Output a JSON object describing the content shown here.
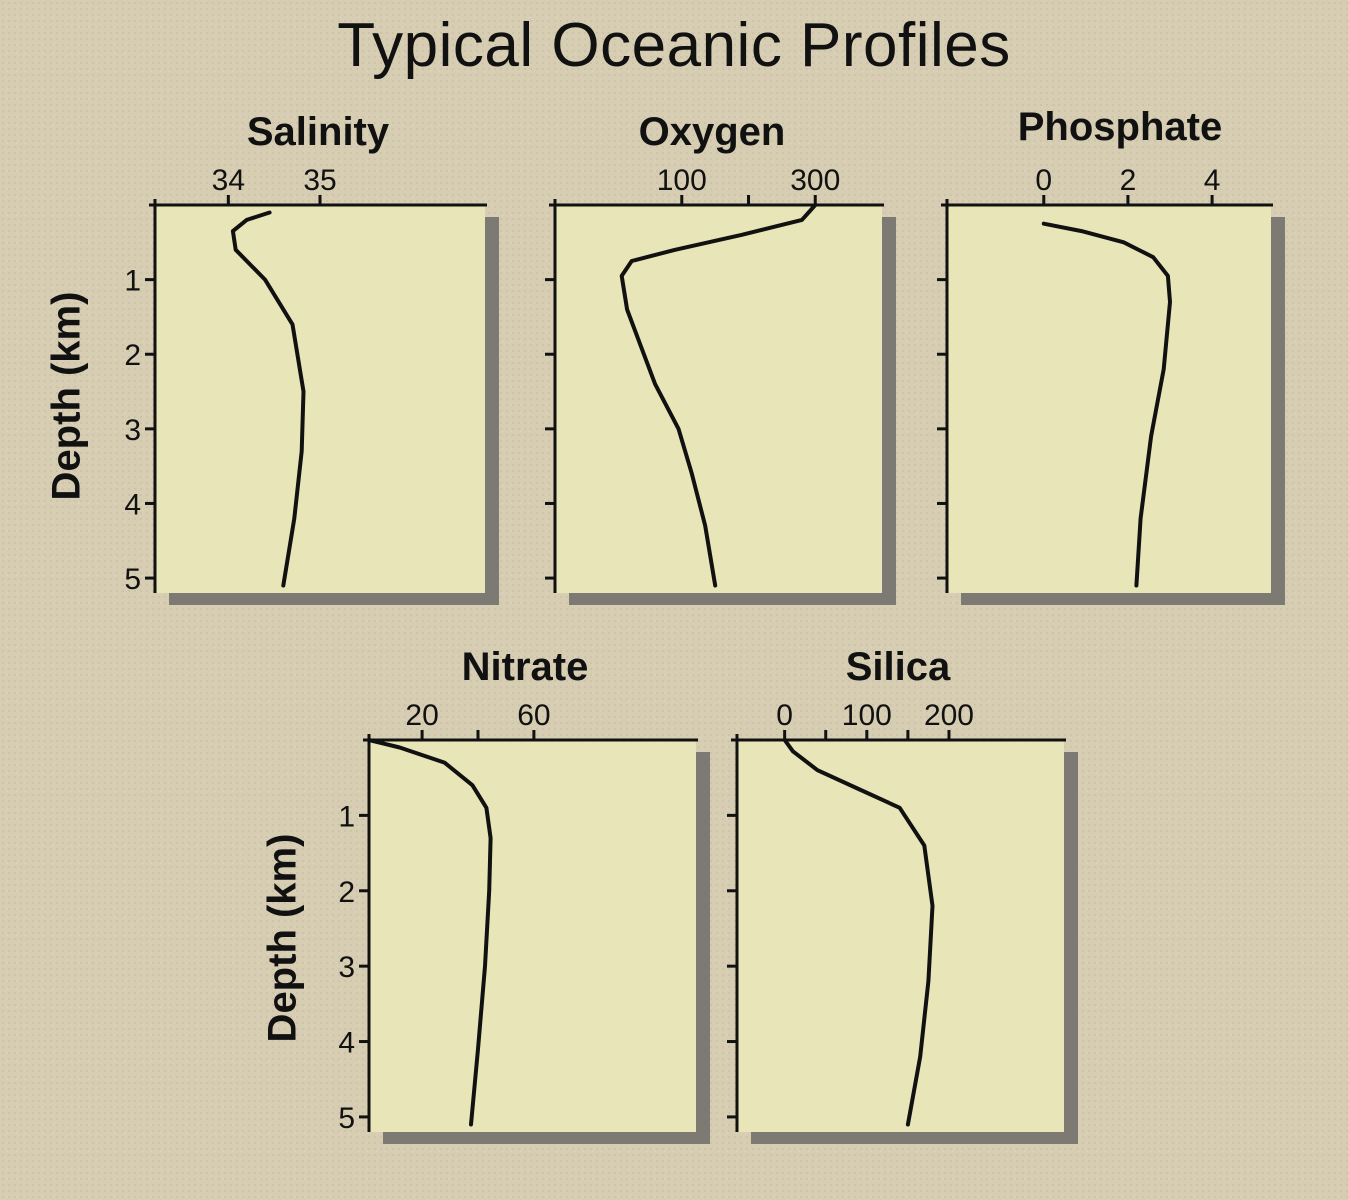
{
  "title": "Typical Oceanic Profiles",
  "colors": {
    "background": "#d6cdb2",
    "plot_area": "#e8e6b8",
    "shadow": "#7d7a73",
    "line": "#111111"
  },
  "chart_data": [
    {
      "type": "line",
      "title": "Salinity",
      "xlabel": "",
      "ylabel": "Depth (km)",
      "x_ticks": [
        34,
        35
      ],
      "x_tick_labels": [
        "34",
        "35"
      ],
      "xlim": [
        33.2,
        36.8
      ],
      "ylim": [
        0,
        5.2
      ],
      "y_ticks": [
        1,
        2,
        3,
        4,
        5
      ],
      "y_tick_labels": [
        "1",
        "2",
        "3",
        "4",
        "5"
      ],
      "series": [
        {
          "x": [
            34.45,
            34.2,
            34.05,
            34.08,
            34.4,
            34.7,
            34.82,
            34.8,
            34.72,
            34.6
          ],
          "y": [
            0.1,
            0.2,
            0.35,
            0.6,
            1.0,
            1.6,
            2.5,
            3.3,
            4.2,
            5.1
          ]
        }
      ]
    },
    {
      "type": "line",
      "title": "Oxygen",
      "xlabel": "",
      "ylabel": "",
      "x_ticks": [
        100,
        200,
        300
      ],
      "x_tick_labels": [
        "100",
        "",
        "300"
      ],
      "xlim": [
        -90,
        400
      ],
      "ylim": [
        0,
        5.2
      ],
      "y_ticks": [
        1,
        2,
        3,
        4,
        5
      ],
      "y_tick_labels": [
        "",
        "",
        "",
        "",
        ""
      ],
      "series": [
        {
          "x": [
            300,
            280,
            190,
            90,
            25,
            10,
            18,
            60,
            95,
            115,
            135,
            150
          ],
          "y": [
            0.0,
            0.2,
            0.4,
            0.6,
            0.75,
            0.95,
            1.4,
            2.4,
            3.0,
            3.6,
            4.3,
            5.1
          ]
        }
      ]
    },
    {
      "type": "line",
      "title": "Phosphate",
      "xlabel": "",
      "ylabel": "",
      "x_ticks": [
        0,
        2,
        4
      ],
      "x_tick_labels": [
        "0",
        "2",
        "4"
      ],
      "xlim": [
        -2.3,
        5.4
      ],
      "ylim": [
        0,
        5.2
      ],
      "y_ticks": [
        1,
        2,
        3,
        4,
        5
      ],
      "y_tick_labels": [
        "",
        "",
        "",
        "",
        ""
      ],
      "series": [
        {
          "x": [
            0.0,
            0.9,
            1.9,
            2.6,
            2.95,
            3.0,
            2.85,
            2.55,
            2.3,
            2.2
          ],
          "y": [
            0.25,
            0.35,
            0.5,
            0.7,
            0.95,
            1.3,
            2.2,
            3.1,
            4.2,
            5.1
          ]
        }
      ]
    },
    {
      "type": "line",
      "title": "Nitrate",
      "xlabel": "",
      "ylabel": "Depth (km)",
      "x_ticks": [
        20,
        40,
        60
      ],
      "x_tick_labels": [
        "20",
        "",
        "60"
      ],
      "xlim": [
        1,
        118
      ],
      "ylim": [
        0,
        5.2
      ],
      "y_ticks": [
        1,
        2,
        3,
        4,
        5
      ],
      "y_tick_labels": [
        "1",
        "2",
        "3",
        "4",
        "5"
      ],
      "series": [
        {
          "x": [
            1,
            12,
            28,
            38,
            43,
            44.5,
            44,
            42.5,
            40,
            37.5
          ],
          "y": [
            0.0,
            0.1,
            0.3,
            0.6,
            0.9,
            1.3,
            2.0,
            3.0,
            4.1,
            5.1
          ]
        }
      ]
    },
    {
      "type": "line",
      "title": "Silica",
      "xlabel": "",
      "ylabel": "",
      "x_ticks": [
        0,
        50,
        100,
        150,
        200
      ],
      "x_tick_labels": [
        "0",
        "",
        "100",
        "",
        "200"
      ],
      "xlim": [
        -58,
        340
      ],
      "ylim": [
        0,
        5.2
      ],
      "y_ticks": [
        1,
        2,
        3,
        4,
        5
      ],
      "y_tick_labels": [
        "",
        "",
        "",
        "",
        ""
      ],
      "series": [
        {
          "x": [
            0,
            10,
            40,
            90,
            140,
            170,
            180,
            175,
            165,
            150
          ],
          "y": [
            0.0,
            0.15,
            0.4,
            0.65,
            0.9,
            1.4,
            2.2,
            3.2,
            4.2,
            5.1
          ]
        }
      ]
    }
  ]
}
